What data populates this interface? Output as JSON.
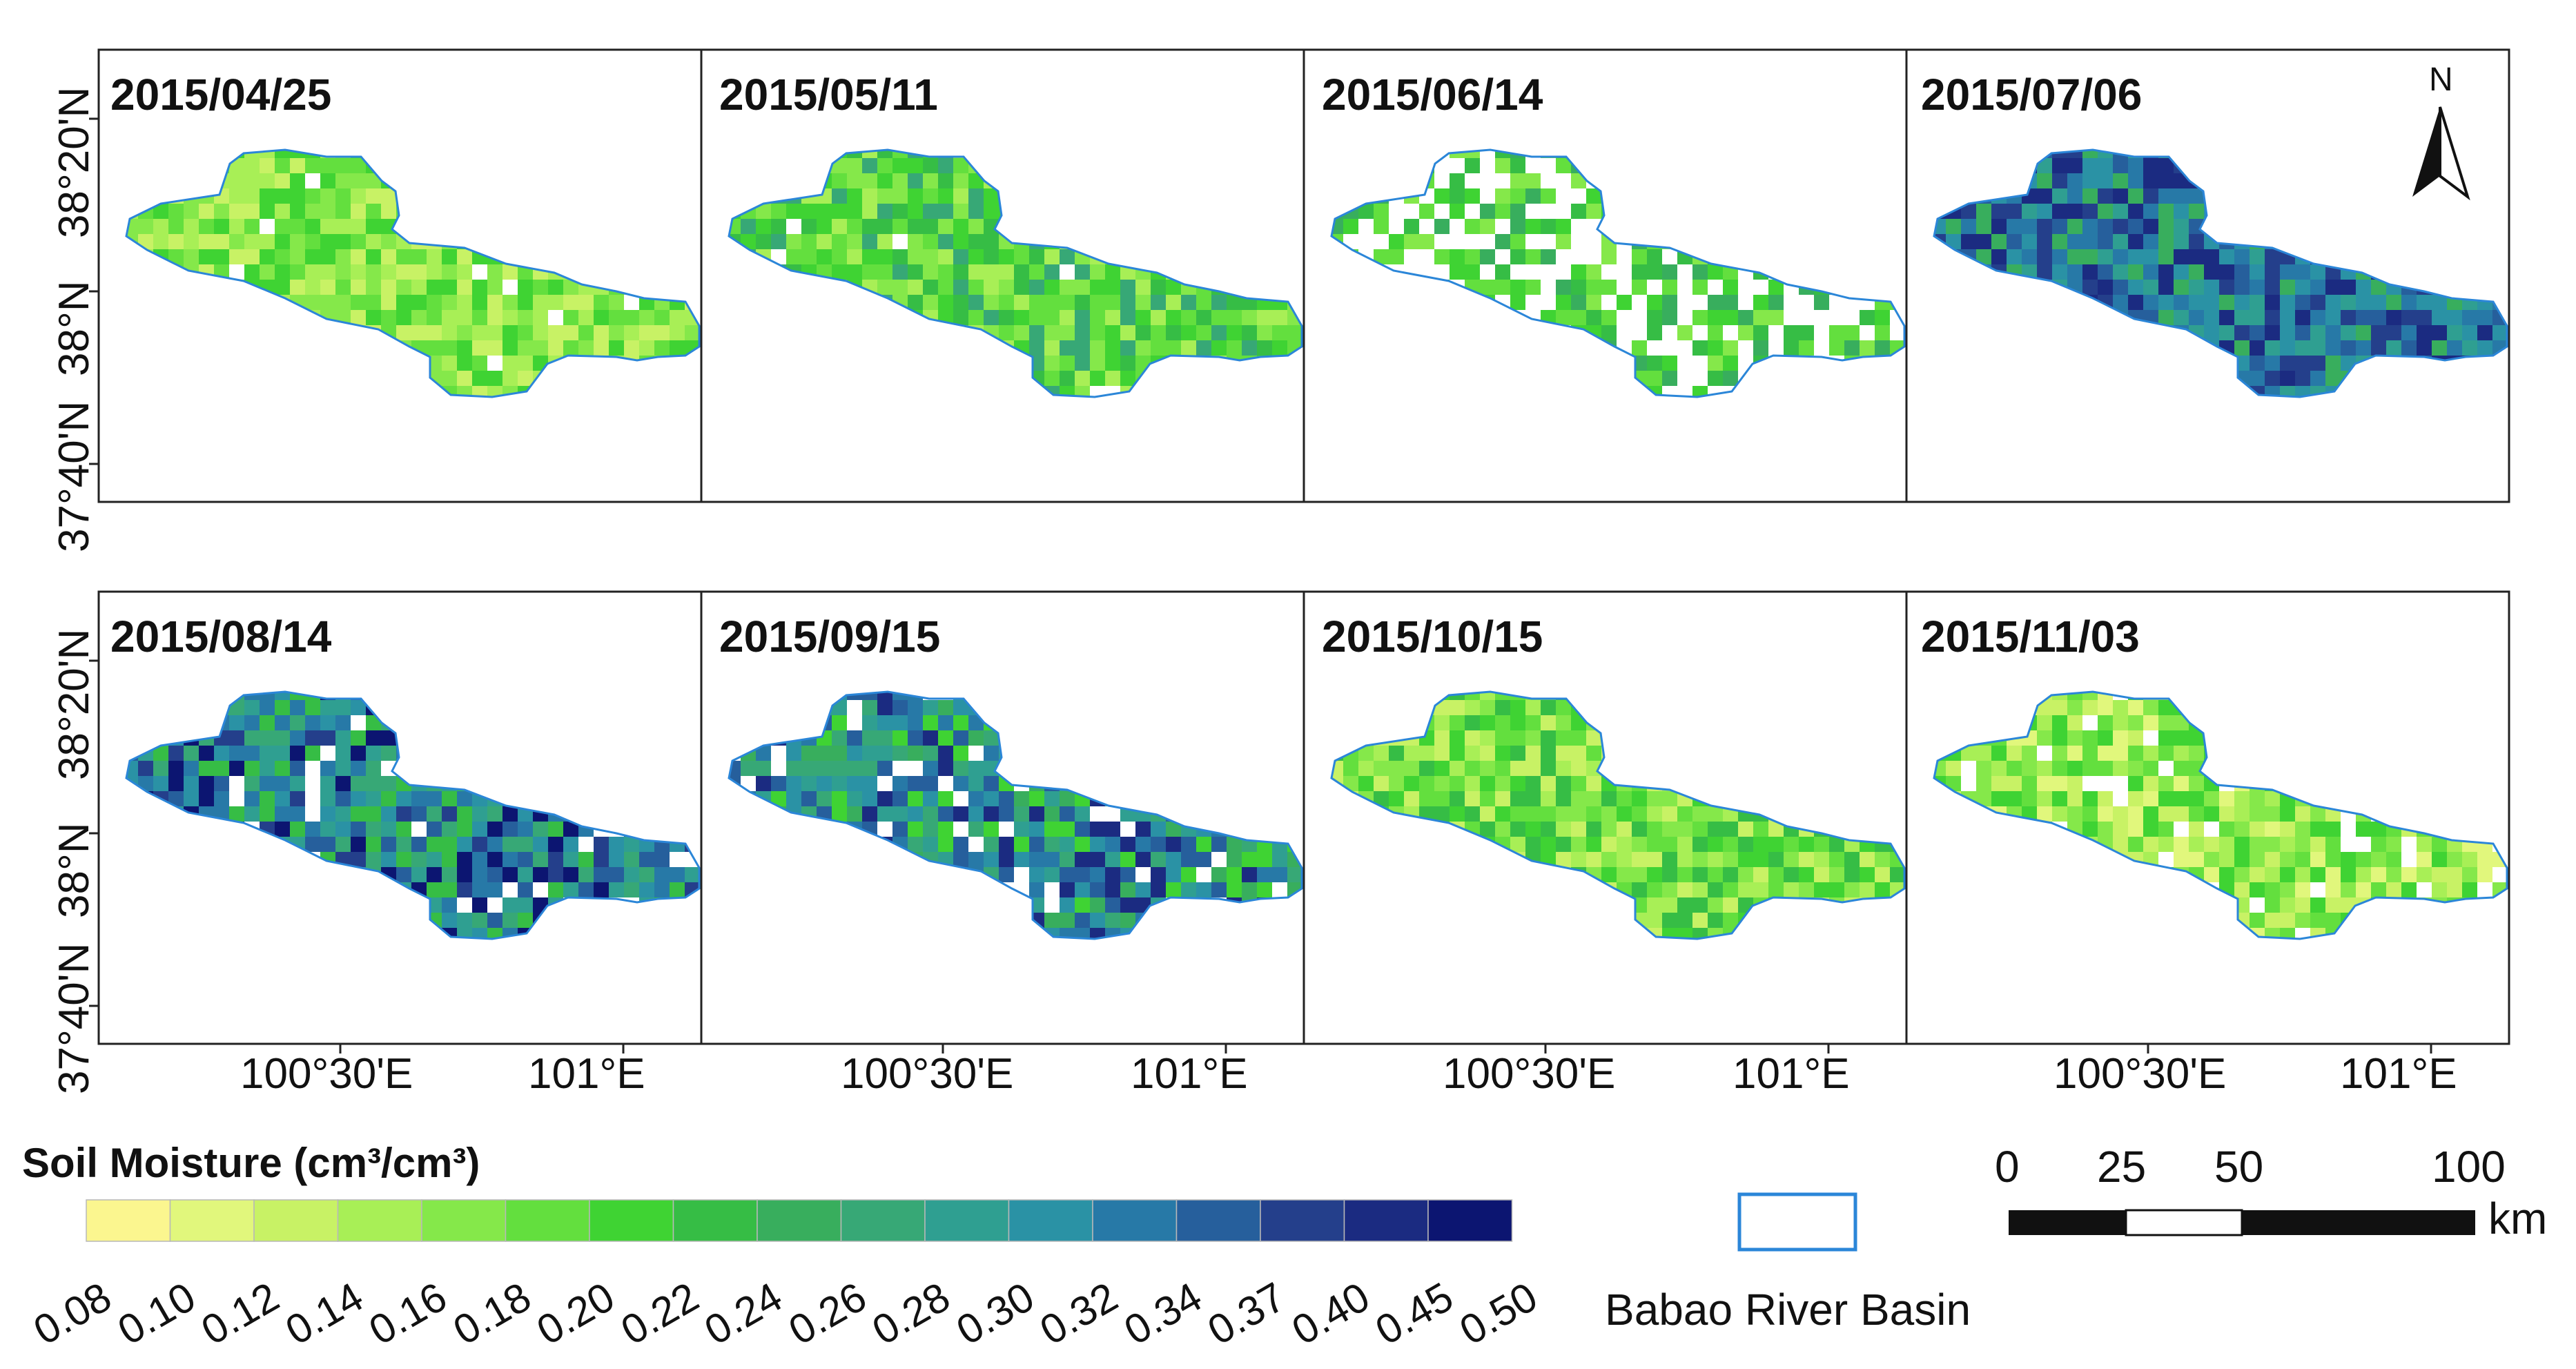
{
  "panels": [
    {
      "date": "2015/04/25",
      "palette": [
        2,
        3,
        4,
        5,
        6
      ],
      "gaps": "few"
    },
    {
      "date": "2015/05/11",
      "palette": [
        3,
        4,
        5,
        6,
        7,
        9
      ],
      "gaps": "few"
    },
    {
      "date": "2015/06/14",
      "palette": [
        4,
        5,
        6,
        7,
        8
      ],
      "gaps": "many"
    },
    {
      "date": "2015/07/06",
      "palette": [
        8,
        10,
        11,
        12,
        13,
        14,
        15
      ],
      "gaps": "none"
    },
    {
      "date": "2015/08/14",
      "palette": [
        7,
        9,
        10,
        11,
        12,
        13,
        14,
        16
      ],
      "gaps": "some"
    },
    {
      "date": "2015/09/15",
      "palette": [
        6,
        8,
        9,
        10,
        11,
        12,
        13,
        15
      ],
      "gaps": "some"
    },
    {
      "date": "2015/10/15",
      "palette": [
        2,
        3,
        4,
        5,
        6,
        7
      ],
      "gaps": "none"
    },
    {
      "date": "2015/11/03",
      "palette": [
        1,
        2,
        3,
        4,
        5,
        6
      ],
      "gaps": "some"
    }
  ],
  "axes": {
    "lat_labels": [
      "38°20'N",
      "38°N",
      "37°40'N"
    ],
    "lon_labels": [
      "100°30'E",
      "101°E"
    ]
  },
  "north_label": "N",
  "legend": {
    "title": "Soil Moisture (cm³/cm³)",
    "colors": [
      "#fbf68f",
      "#e1f77c",
      "#c8f265",
      "#a8ef56",
      "#85e84a",
      "#63df3e",
      "#3fd333",
      "#36bd45",
      "#38ae5d",
      "#37a876",
      "#2f9f91",
      "#2a92a5",
      "#2779a7",
      "#265f9c",
      "#243f8b",
      "#1b2b81",
      "#0c1571"
    ],
    "ticks": [
      "0.08",
      "0.10",
      "0.12",
      "0.14",
      "0.16",
      "0.18",
      "0.20",
      "0.22",
      "0.24",
      "0.26",
      "0.28",
      "0.30",
      "0.32",
      "0.34",
      "0.37",
      "0.40",
      "0.45",
      "0.50"
    ]
  },
  "basin": {
    "label": "Babao River Basin",
    "outline_color": "#2b86d8"
  },
  "scalebar": {
    "ticks": [
      "0",
      "25",
      "50",
      "100"
    ],
    "unit": "km"
  }
}
